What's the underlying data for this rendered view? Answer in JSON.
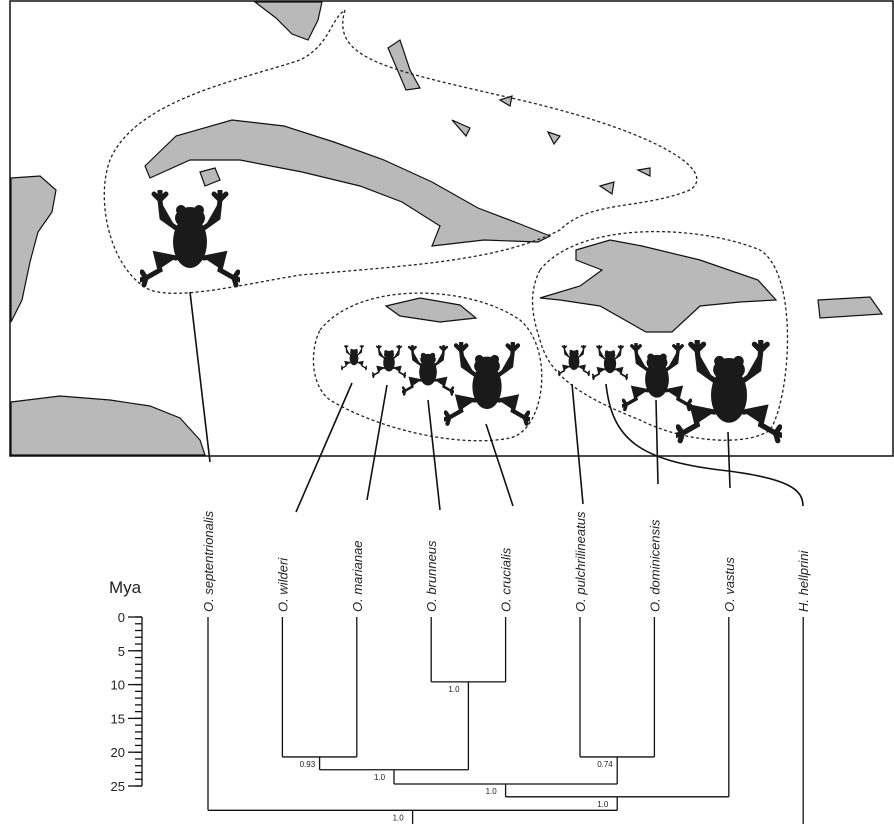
{
  "tree": {
    "age": 28.6,
    "support": "1.0",
    "children": [
      {
        "label": "O. septentrionalis"
      },
      {
        "age": 26.6,
        "support": "1.0",
        "children": [
          {
            "age": 24.7,
            "support": "1.0",
            "children": [
              {
                "age": 22.6,
                "support": "1.0",
                "children": [
                  {
                    "age": 20.7,
                    "support": "0.93",
                    "children": [
                      {
                        "label": "O. wilderi"
                      },
                      {
                        "label": "O. marianae"
                      }
                    ]
                  },
                  {
                    "age": 9.6,
                    "support": "1.0",
                    "children": [
                      {
                        "label": "O. brunneus"
                      },
                      {
                        "label": "O. crucialis"
                      }
                    ]
                  }
                ]
              },
              {
                "age": 20.7,
                "support": "0.74",
                "children": [
                  {
                    "label": "O. pulchrilineatus"
                  },
                  {
                    "label": "O. dominicensis"
                  }
                ]
              }
            ]
          },
          {
            "label": "O. vastus"
          }
        ]
      }
    ]
  },
  "outgroup": {
    "label": "H. hellprini"
  },
  "time_axis": {
    "label": "Mya",
    "range": [
      0,
      25
    ],
    "ticks": [
      0,
      5,
      10,
      15,
      20,
      25
    ]
  }
}
